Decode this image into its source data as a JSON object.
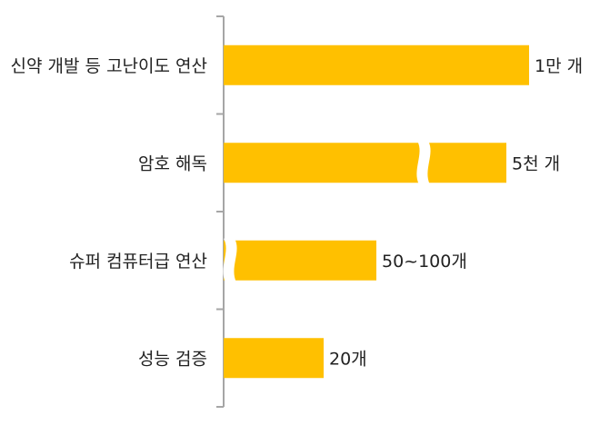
{
  "chart_data": {
    "type": "bar",
    "orientation": "horizontal",
    "categories": [
      "신약 개발 등 고난이도 연산",
      "암호 해독",
      "슈퍼 컴퓨터급 연산",
      "성능 검증"
    ],
    "value_labels": [
      "1만 개",
      "5천 개",
      "50~100개",
      "20개"
    ],
    "values": [
      10000,
      5000,
      100,
      20
    ],
    "axis_break": [
      false,
      true,
      true,
      false
    ],
    "bar_color": "#FFC000",
    "axis_color": "#A6A6A6"
  }
}
